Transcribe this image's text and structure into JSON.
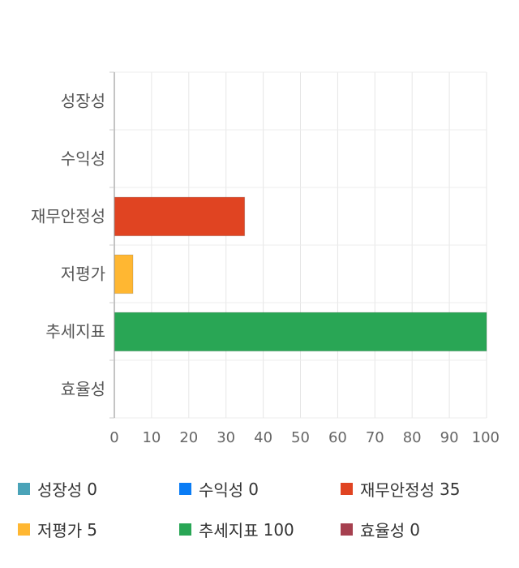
{
  "chart_data": {
    "type": "bar",
    "orientation": "horizontal",
    "categories": [
      "성장성",
      "수익성",
      "재무안정성",
      "저평가",
      "추세지표",
      "효율성"
    ],
    "values": [
      0,
      0,
      35,
      5,
      100,
      0
    ],
    "colors": [
      "#4aa3b8",
      "#0a7cf5",
      "#e04422",
      "#ffb732",
      "#29a655",
      "#a6404f"
    ],
    "xlim": [
      0,
      100
    ],
    "xticks": [
      "0",
      "10",
      "20",
      "30",
      "40",
      "50",
      "60",
      "70",
      "80",
      "90",
      "100"
    ],
    "grid": true,
    "legend_position": "bottom"
  },
  "legend": [
    {
      "label": "성장성",
      "value": "0",
      "color": "#4aa3b8"
    },
    {
      "label": "수익성",
      "value": "0",
      "color": "#0a7cf5"
    },
    {
      "label": "재무안정성",
      "value": "35",
      "color": "#e04422"
    },
    {
      "label": "저평가",
      "value": "5",
      "color": "#ffb732"
    },
    {
      "label": "추세지표",
      "value": "100",
      "color": "#29a655"
    },
    {
      "label": "효율성",
      "value": "0",
      "color": "#a6404f"
    }
  ]
}
